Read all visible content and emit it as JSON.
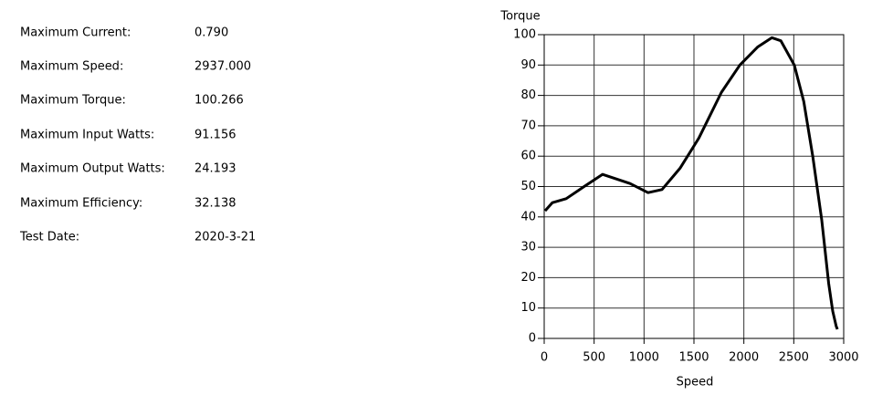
{
  "stats": [
    {
      "label": "Maximum Current:",
      "value": "0.790"
    },
    {
      "label": "Maximum Speed:",
      "value": "2937.000"
    },
    {
      "label": "Maximum Torque:",
      "value": "100.266"
    },
    {
      "label": "Maximum Input Watts:",
      "value": "91.156"
    },
    {
      "label": "Maximum Output Watts:",
      "value": "24.193"
    },
    {
      "label": "Maximum Efficiency:",
      "value": "32.138"
    },
    {
      "label": "Test Date:",
      "value": "2020-3-21"
    }
  ],
  "chart_data": {
    "type": "line",
    "x_label": "Speed",
    "y_label": "Torque",
    "series": [
      {
        "color": "#000000",
        "x": [
          9,
          82,
          220,
          400,
          585,
          860,
          1040,
          1180,
          1360,
          1550,
          1775,
          1960,
          2140,
          2280,
          2370,
          2505,
          2600,
          2690,
          2780,
          2850,
          2890,
          2925,
          2937
        ],
        "values": [
          42,
          44.7,
          46,
          50,
          54,
          51,
          48,
          49,
          56,
          66,
          81,
          90,
          96,
          99,
          98,
          90,
          78,
          60,
          39,
          18,
          9,
          4,
          3
        ]
      }
    ],
    "xlim": [
      0,
      3000
    ],
    "xticks": [
      0,
      500,
      1000,
      1500,
      2000,
      2500,
      3000
    ],
    "ylim": [
      0,
      100
    ],
    "yticks": [
      0,
      10,
      20,
      30,
      40,
      50,
      60,
      70,
      80,
      90,
      100
    ],
    "grid": true
  }
}
